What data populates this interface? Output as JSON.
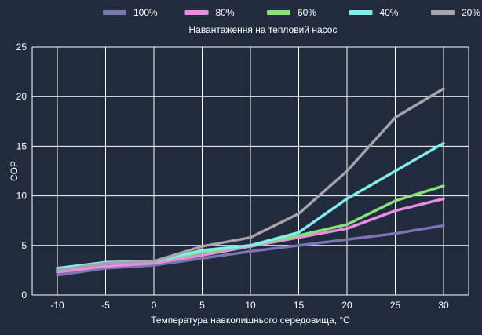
{
  "chart_data": {
    "type": "line",
    "title": "",
    "xlabel": "Температура навколишнього середовища, °C",
    "ylabel": "COP",
    "x": [
      -10,
      -5,
      0,
      5,
      10,
      15,
      20,
      25,
      30
    ],
    "xlim": [
      -10,
      30
    ],
    "ylim": [
      0,
      25
    ],
    "xticks": [
      -10,
      -5,
      0,
      5,
      10,
      15,
      20,
      25,
      30
    ],
    "yticks": [
      0,
      5,
      10,
      15,
      20,
      25
    ],
    "grid": true,
    "legend": {
      "placement": "top",
      "title": "Навантаження на тепловий насос"
    },
    "series": [
      {
        "name": "100%",
        "color": "#7a74b3",
        "values": [
          2.0,
          2.7,
          3.0,
          3.7,
          4.4,
          5.0,
          5.6,
          6.2,
          7.0
        ]
      },
      {
        "name": "80%",
        "color": "#e98ce3",
        "values": [
          2.3,
          2.9,
          3.2,
          4.0,
          4.9,
          5.8,
          6.7,
          8.5,
          9.7
        ]
      },
      {
        "name": "60%",
        "color": "#89e07a",
        "values": [
          2.5,
          3.2,
          3.4,
          4.3,
          5.0,
          6.0,
          7.1,
          9.5,
          11.0
        ]
      },
      {
        "name": "40%",
        "color": "#80ecec",
        "values": [
          2.7,
          3.3,
          3.4,
          4.5,
          5.0,
          6.3,
          9.7,
          12.5,
          15.3
        ]
      },
      {
        "name": "20%",
        "color": "#a8a2ab",
        "values": [
          2.5,
          3.2,
          3.4,
          4.9,
          5.8,
          8.2,
          12.5,
          17.9,
          20.8
        ]
      }
    ]
  }
}
